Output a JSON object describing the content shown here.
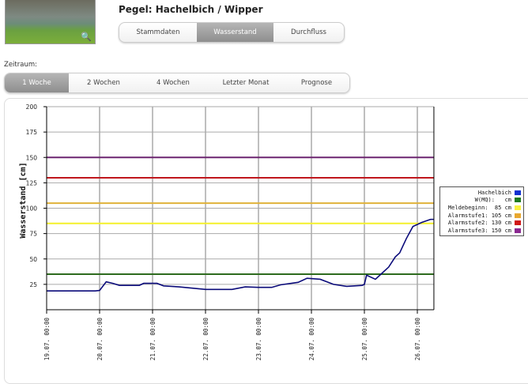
{
  "header": {
    "title": "Pegel: Hachelbich / Wipper",
    "photo_icon": "magnifier-zoom-icon"
  },
  "tabs": [
    {
      "label": "Stammdaten",
      "active": false
    },
    {
      "label": "Wasserstand",
      "active": true
    },
    {
      "label": "Durchfluss",
      "active": false
    }
  ],
  "period": {
    "label": "Zeitraum:",
    "options": [
      {
        "label": "1 Woche",
        "active": true
      },
      {
        "label": "2 Wochen",
        "active": false
      },
      {
        "label": "4 Wochen",
        "active": false
      },
      {
        "label": "Letzter Monat",
        "active": false
      },
      {
        "label": "Prognose",
        "active": false
      }
    ]
  },
  "chart_data": {
    "type": "line",
    "ylabel": "Wasserstand [cm]",
    "ylim": [
      0,
      200
    ],
    "yticks": [
      25,
      50,
      75,
      100,
      125,
      150,
      175,
      200
    ],
    "xlim": [
      "19.07. 00:00",
      "26.07. 07:30"
    ],
    "xticks": [
      "19.07. 00:00",
      "20.07. 00:00",
      "21.07. 00:00",
      "22.07. 00:00",
      "23.07. 00:00",
      "24.07. 00:00",
      "25.07. 00:00",
      "26.07. 00:00"
    ],
    "grid": true,
    "legend_position": "right",
    "series": [
      {
        "name": "Hachelbich",
        "color": "#0b0b7a",
        "points": [
          [
            "19.07. 00:00",
            18.5
          ],
          [
            "19.07. 22:00",
            18.5
          ],
          [
            "20.07. 00:00",
            19
          ],
          [
            "20.07. 03:00",
            27.5
          ],
          [
            "20.07. 06:00",
            26
          ],
          [
            "20.07. 09:00",
            24
          ],
          [
            "20.07. 18:00",
            24
          ],
          [
            "20.07. 20:00",
            26
          ],
          [
            "21.07. 02:00",
            26
          ],
          [
            "21.07. 05:00",
            23.5
          ],
          [
            "21.07. 12:00",
            22.5
          ],
          [
            "22.07. 00:00",
            20
          ],
          [
            "22.07. 12:00",
            20
          ],
          [
            "22.07. 18:00",
            22.5
          ],
          [
            "23.07. 00:00",
            22
          ],
          [
            "23.07. 06:00",
            22
          ],
          [
            "23.07. 10:00",
            24.5
          ],
          [
            "23.07. 18:00",
            27
          ],
          [
            "23.07. 22:00",
            31
          ],
          [
            "24.07. 04:00",
            30
          ],
          [
            "24.07. 10:00",
            25
          ],
          [
            "24.07. 16:00",
            23
          ],
          [
            "24.07. 23:00",
            24
          ],
          [
            "25.07. 00:00",
            25
          ],
          [
            "25.07. 01:00",
            34
          ],
          [
            "25.07. 05:00",
            30
          ],
          [
            "25.07. 08:00",
            36
          ],
          [
            "25.07. 11:00",
            42
          ],
          [
            "25.07. 14:00",
            52
          ],
          [
            "25.07. 16:00",
            56
          ],
          [
            "25.07. 19:00",
            70
          ],
          [
            "25.07. 22:00",
            82
          ],
          [
            "26.07. 02:00",
            86
          ],
          [
            "26.07. 06:00",
            89
          ],
          [
            "26.07. 07:30",
            89
          ]
        ]
      }
    ],
    "thresholds": [
      {
        "name": "W(MQ):",
        "value": 35,
        "unit": "cm",
        "color": "#2e6b1e",
        "value_label": ""
      },
      {
        "name": "Meldebeginn:",
        "value": 85,
        "unit": "cm",
        "color": "#f4f02a",
        "value_label": "85"
      },
      {
        "name": "Alarmstufe1:",
        "value": 105,
        "unit": "cm",
        "color": "#e0b23a",
        "value_label": "105"
      },
      {
        "name": "Alarmstufe2:",
        "value": 130,
        "unit": "cm",
        "color": "#c0171d",
        "value_label": "130"
      },
      {
        "name": "Alarmstufe3:",
        "value": 150,
        "unit": "cm",
        "color": "#6c2570",
        "value_label": "150"
      }
    ],
    "legend": [
      {
        "text": "Hachelbich",
        "color": "#1030d0"
      },
      {
        "text": "W(MQ):   cm",
        "color": "#1e7a1e"
      },
      {
        "text": "Meldebeginn:  85 cm",
        "color": "#f8f040"
      },
      {
        "text": "Alarmstufe1: 105 cm",
        "color": "#e8a830"
      },
      {
        "text": "Alarmstufe2: 130 cm",
        "color": "#d01818"
      },
      {
        "text": "Alarmstufe3: 150 cm",
        "color": "#8a2890"
      }
    ]
  }
}
